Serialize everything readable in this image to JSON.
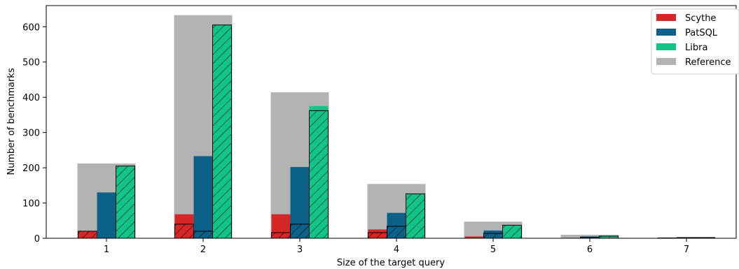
{
  "chart_data": {
    "type": "bar",
    "xlabel": "Size of the target query",
    "ylabel": "Number of benchmarks",
    "categories": [
      "1",
      "2",
      "3",
      "4",
      "5",
      "6",
      "7"
    ],
    "ylim": [
      0,
      660
    ],
    "yticks": [
      0,
      100,
      200,
      300,
      400,
      500,
      600
    ],
    "grid": false,
    "legend_position": "top-right",
    "reference": {
      "name": "Reference",
      "color": "#b3b3b3",
      "values": [
        212,
        633,
        414,
        154,
        47,
        10,
        2
      ]
    },
    "series": [
      {
        "name": "Scythe",
        "color": "#d62728",
        "total": [
          20,
          68,
          68,
          25,
          5,
          0,
          1
        ],
        "hatched": [
          20,
          40,
          16,
          16,
          0,
          0,
          1
        ]
      },
      {
        "name": "PatSQL",
        "color": "#0c6189",
        "total": [
          130,
          233,
          202,
          72,
          22,
          5,
          2
        ],
        "hatched": [
          0,
          20,
          40,
          34,
          14,
          3,
          2
        ]
      },
      {
        "name": "Libra",
        "color": "#13c48a",
        "total": [
          205,
          605,
          375,
          126,
          37,
          6,
          2
        ],
        "hatched": [
          205,
          605,
          362,
          126,
          37,
          6,
          2
        ]
      }
    ]
  }
}
